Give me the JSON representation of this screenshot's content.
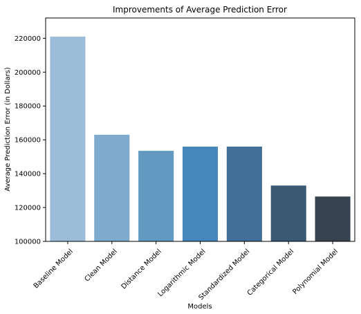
{
  "chart_data": {
    "type": "bar",
    "title": "Improvements of Average Prediction Error",
    "xlabel": "Models",
    "ylabel": "Average Prediction Error (in Dollars)",
    "categories": [
      "Baseline Model",
      "Clean Model",
      "Distance Model",
      "Logarithmic Model",
      "Standardized Model",
      "Categorical Model",
      "Polynomial Model"
    ],
    "values": [
      221000,
      163000,
      153500,
      156000,
      156000,
      133000,
      126500
    ],
    "colors": [
      "#9bbdd9",
      "#7eaacd",
      "#6299c0",
      "#4786bb",
      "#426f97",
      "#3a5a74",
      "#36434f"
    ],
    "ylim": [
      100000,
      232000
    ],
    "yticks": [
      100000,
      120000,
      140000,
      160000,
      180000,
      200000,
      220000
    ],
    "ytick_labels": [
      "100000",
      "120000",
      "140000",
      "160000",
      "180000",
      "200000",
      "220000"
    ],
    "grid": false,
    "legend": "none"
  }
}
